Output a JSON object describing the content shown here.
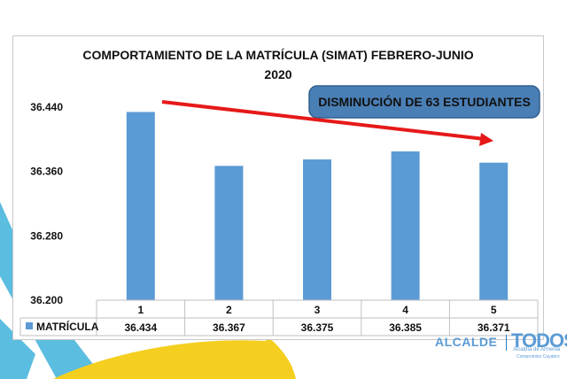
{
  "colors": {
    "bar": "#5b9bd5",
    "arrow": "#e61919",
    "callout_fill": "#4a7fb5",
    "callout_border": "#2f5f8f",
    "deco_blue": "#5bbde0",
    "deco_yellow": "#f5cf1f"
  },
  "callout": {
    "text": "DISMINUCIÓN DE 63 ESTUDIANTES"
  },
  "chart_data": {
    "type": "bar",
    "title": "COMPORTAMIENTO DE LA MATRÍCULA (SIMAT) FEBRERO-JUNIO 2020",
    "title_lines": [
      "COMPORTAMIENTO DE LA MATRÍCULA (SIMAT) FEBRERO-JUNIO",
      "2020"
    ],
    "categories": [
      "1",
      "2",
      "3",
      "4",
      "5"
    ],
    "series": [
      {
        "name": "MATRÍCULA",
        "values": [
          36434,
          36367,
          36375,
          36385,
          36371
        ]
      }
    ],
    "value_labels": [
      "36.434",
      "36.367",
      "36.375",
      "36.385",
      "36.371"
    ],
    "yticks": [
      36200,
      36280,
      36360,
      36440
    ],
    "ytick_labels": [
      "36.200",
      "36.280",
      "36.360",
      "36.440"
    ],
    "ylim": [
      36200,
      36440
    ],
    "data_table": true,
    "grid": false
  },
  "footer": {
    "alcalde": "ALCALDE",
    "logo_text": "TODOS",
    "sub1": "Alcaldía de Armenia",
    "sub2": "Compromiso Cuyabro"
  }
}
